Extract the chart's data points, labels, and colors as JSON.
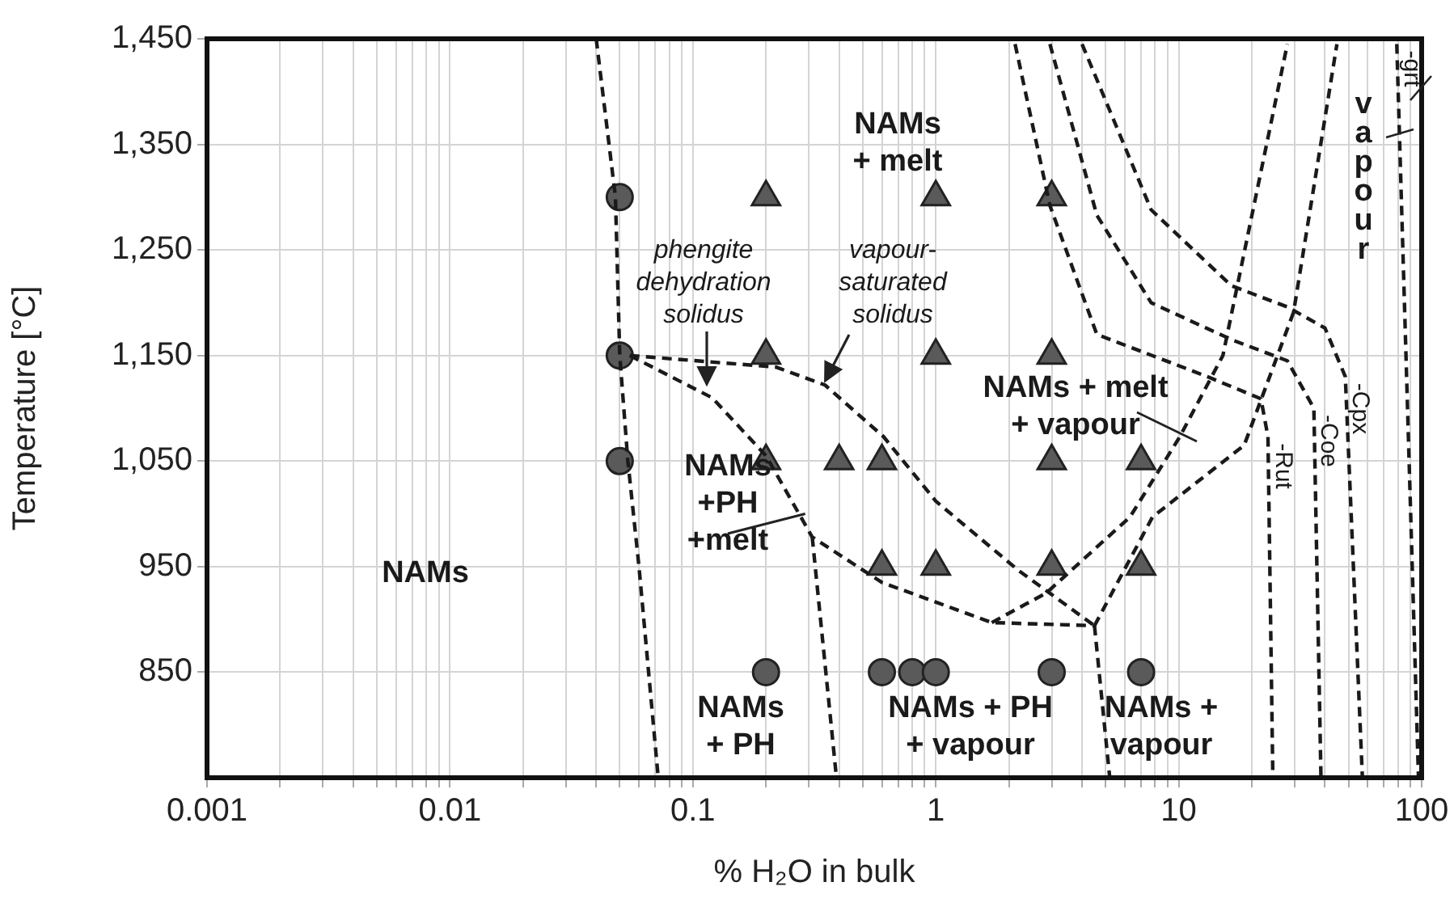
{
  "chart_data": {
    "type": "scatter",
    "xlabel": "% H₂O in bulk",
    "ylabel": "Temperature [°C]",
    "log": "x",
    "grid": true,
    "legend": false,
    "xlim": [
      0.001,
      100
    ],
    "xticks": [
      {
        "value": 0.001,
        "label": "0.001"
      },
      {
        "value": 0.002,
        "label": null
      },
      {
        "value": 0.003,
        "label": null
      },
      {
        "value": 0.004,
        "label": null
      },
      {
        "value": 0.005,
        "label": null
      },
      {
        "value": 0.006,
        "label": null
      },
      {
        "value": 0.007,
        "label": null
      },
      {
        "value": 0.008,
        "label": null
      },
      {
        "value": 0.009,
        "label": null
      },
      {
        "value": 0.01,
        "label": "0.01"
      },
      {
        "value": 0.02,
        "label": null
      },
      {
        "value": 0.03,
        "label": null
      },
      {
        "value": 0.04,
        "label": null
      },
      {
        "value": 0.05,
        "label": null
      },
      {
        "value": 0.06,
        "label": null
      },
      {
        "value": 0.07,
        "label": null
      },
      {
        "value": 0.08,
        "label": null
      },
      {
        "value": 0.09,
        "label": null
      },
      {
        "value": 0.1,
        "label": "0.1"
      },
      {
        "value": 0.2,
        "label": null
      },
      {
        "value": 0.3,
        "label": null
      },
      {
        "value": 0.4,
        "label": null
      },
      {
        "value": 0.5,
        "label": null
      },
      {
        "value": 0.6,
        "label": null
      },
      {
        "value": 0.7,
        "label": null
      },
      {
        "value": 0.8,
        "label": null
      },
      {
        "value": 0.9,
        "label": null
      },
      1,
      {
        "value": 2,
        "label": null
      },
      {
        "value": 3,
        "label": null
      },
      {
        "value": 4,
        "label": null
      },
      {
        "value": 5,
        "label": null
      },
      {
        "value": 6,
        "label": null
      },
      {
        "value": 7,
        "label": null
      },
      {
        "value": 8,
        "label": null
      },
      {
        "value": 9,
        "label": null
      },
      10,
      {
        "value": 20,
        "label": null
      },
      {
        "value": 30,
        "label": null
      },
      {
        "value": 40,
        "label": null
      },
      {
        "value": 50,
        "label": null
      },
      {
        "value": 60,
        "label": null
      },
      {
        "value": 70,
        "label": null
      },
      {
        "value": 80,
        "label": null
      },
      {
        "value": 90,
        "label": null
      },
      100
    ],
    "ylim": [
      750,
      1450
    ],
    "yticks": [
      850,
      {
        "value": 950,
        "label": "950"
      },
      {
        "value": 1050,
        "label": "1,050"
      },
      {
        "value": 1150,
        "label": "1,150"
      },
      {
        "value": 1250,
        "label": "1,250"
      },
      {
        "value": 1350,
        "label": "1,350"
      },
      {
        "value": 1450,
        "label": "1,450"
      }
    ],
    "series": [
      {
        "type": "line",
        "line_style": "dashed",
        "marker": "none",
        "color": "#1a1a1a",
        "x": [
          0.04,
          0.048,
          0.05,
          0.054,
          0.06,
          0.072
        ],
        "values": [
          1450,
          1300,
          1150,
          1050,
          950,
          750
        ]
      },
      {
        "type": "line",
        "line_style": "dashed",
        "marker": "none",
        "color": "#1a1a1a",
        "x": [
          0.055,
          0.12,
          0.2,
          0.31,
          0.6,
          1.7,
          4.5
        ],
        "values": [
          1150,
          1110,
          1055,
          978,
          935,
          897,
          894
        ]
      },
      {
        "type": "line",
        "line_style": "dashed",
        "marker": "none",
        "color": "#1a1a1a",
        "x": [
          0.055,
          0.22,
          0.35,
          0.61,
          1.0,
          2.2,
          4.5
        ],
        "values": [
          1150,
          1139,
          1122,
          1073,
          1012,
          946,
          894
        ]
      },
      {
        "type": "line",
        "line_style": "dashed",
        "marker": "none",
        "color": "#1a1a1a",
        "x": [
          0.31,
          0.39
        ],
        "values": [
          978,
          750
        ]
      },
      {
        "type": "line",
        "line_style": "dashed",
        "marker": "none",
        "color": "#1a1a1a",
        "x": [
          4.5,
          5.2
        ],
        "values": [
          894,
          750
        ]
      },
      {
        "type": "line",
        "line_style": "dashed",
        "marker": "none",
        "color": "#1a1a1a",
        "x": [
          1.7,
          2.85,
          6.3,
          10.1,
          15.2,
          28
        ],
        "values": [
          897,
          925,
          997,
          1073,
          1150,
          1445
        ]
      },
      {
        "type": "line",
        "line_style": "dashed",
        "marker": "none",
        "color": "#1a1a1a",
        "x": [
          4.5,
          7.8,
          18.6,
          29.7,
          44.8
        ],
        "values": [
          894,
          997,
          1065,
          1191,
          1445
        ]
      },
      {
        "type": "line",
        "line_style": "dashed",
        "marker": "none",
        "color": "#1a1a1a",
        "name": "-Rut",
        "x": [
          2.12,
          2.95,
          4.6,
          13.1,
          21.8,
          23.3,
          24.4
        ],
        "values": [
          1445,
          1292,
          1170,
          1130,
          1109,
          1073,
          751
        ]
      },
      {
        "type": "line",
        "line_style": "dashed",
        "marker": "none",
        "color": "#1a1a1a",
        "name": "-Coe",
        "x": [
          2.95,
          4.6,
          7.7,
          16.5,
          28,
          36,
          38.5
        ],
        "values": [
          1445,
          1283,
          1200,
          1165,
          1145,
          1100,
          751
        ]
      },
      {
        "type": "line",
        "line_style": "dashed",
        "marker": "none",
        "color": "#1a1a1a",
        "name": "-Cpx",
        "x": [
          4.0,
          7.7,
          16.5,
          28,
          40,
          48.5,
          57
        ],
        "values": [
          1445,
          1288,
          1216,
          1196,
          1176,
          1130,
          751
        ]
      },
      {
        "type": "line",
        "line_style": "dashed",
        "marker": "none",
        "color": "#1a1a1a",
        "name": "-grt",
        "x": [
          79,
          97
        ],
        "values": [
          1445,
          751
        ]
      },
      {
        "marker": "circle",
        "color": "#5a5a5a",
        "x": [
          0.05,
          0.05,
          0.05
        ],
        "values": [
          1300,
          1150,
          1050
        ]
      },
      {
        "marker": "triangle",
        "color": "#5a5a5a",
        "x": [
          0.2,
          1,
          3,
          0.2,
          1,
          3,
          0.2,
          0.4,
          0.6,
          3,
          7,
          0.6,
          1,
          3,
          7
        ],
        "values": [
          1300,
          1300,
          1300,
          1150,
          1150,
          1150,
          1050,
          1050,
          1050,
          1050,
          1050,
          950,
          950,
          950,
          950
        ]
      },
      {
        "marker": "circle",
        "color": "#5a5a5a",
        "x": [
          0.2,
          0.6,
          0.8,
          1,
          3,
          7
        ],
        "values": [
          850,
          850,
          850,
          850,
          850,
          850
        ]
      }
    ],
    "annotations": [
      "phengite\ndehydration\nsolidus",
      "vapour-\nsaturated\nsolidus",
      "NAMs\n+ melt",
      "NAMs + melt\n+ vapour",
      {
        "text": "NAMs\n+PH\n+melt",
        "x": 0.29,
        "y": 1000
      },
      "NAMs",
      "NAMs\n+ PH",
      "NAMs + PH\n+ vapour",
      "NAMs +\nvapour",
      "vapour"
    ]
  }
}
